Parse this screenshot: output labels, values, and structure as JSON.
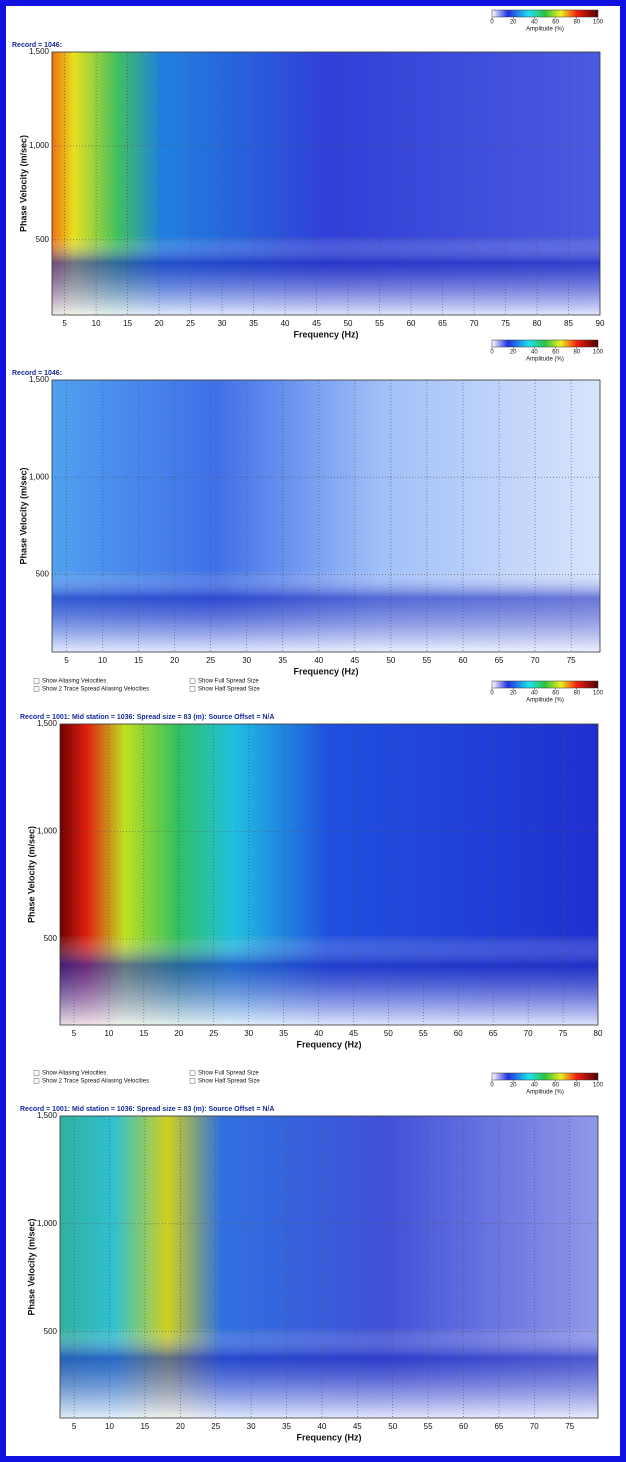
{
  "chart_data": [
    {
      "type": "heatmap",
      "title": "Record = 1046:",
      "xlabel": "Frequency (Hz)",
      "ylabel": "Phase Velocity (m/sec)",
      "xlim": [
        3,
        90
      ],
      "xticks": [
        5,
        10,
        15,
        20,
        25,
        30,
        35,
        40,
        45,
        50,
        55,
        60,
        65,
        70,
        75,
        80,
        85,
        90
      ],
      "ylim": [
        100,
        1500
      ],
      "yticks": [
        {
          "value": 500,
          "label": "500"
        },
        {
          "value": 1000,
          "label": "1,000"
        },
        {
          "value": 1500,
          "label": "1,500"
        }
      ],
      "grid": true,
      "colorbar": {
        "label": "Amplitude (%)",
        "ticks": [
          0,
          20,
          40,
          60,
          80,
          100
        ]
      }
    },
    {
      "type": "heatmap",
      "title": "Record = 1046:",
      "xlabel": "Frequency (Hz)",
      "ylabel": "Phase Velocity (m/sec)",
      "xlim": [
        3,
        79
      ],
      "xticks": [
        5,
        10,
        15,
        20,
        25,
        30,
        35,
        40,
        45,
        50,
        55,
        60,
        65,
        70,
        75
      ],
      "ylim": [
        100,
        1500
      ],
      "yticks": [
        {
          "value": 500,
          "label": "500"
        },
        {
          "value": 1000,
          "label": "1,000"
        },
        {
          "value": 1500,
          "label": "1,500"
        }
      ],
      "grid": true,
      "colorbar": {
        "label": "Amplitude (%)",
        "ticks": [
          0,
          20,
          40,
          60,
          80,
          100
        ]
      }
    },
    {
      "type": "heatmap",
      "title": "Record = 1001: Mid station = 1036: Spread size = 83 (m): Source Offset = N/A",
      "xlabel": "Frequency (Hz)",
      "ylabel": "Phase Velocity (m/sec)",
      "options": [
        "Show Aliasing Velocities",
        "Show 2 Trace Spread Aliasing Velocities",
        "Show Full Spread Size",
        "Show Half Spread Size"
      ],
      "xlim": [
        3,
        80
      ],
      "xticks": [
        5,
        10,
        15,
        20,
        25,
        30,
        35,
        40,
        45,
        50,
        55,
        60,
        65,
        70,
        75,
        80
      ],
      "ylim": [
        100,
        1500
      ],
      "yticks": [
        {
          "value": 500,
          "label": "500"
        },
        {
          "value": 1000,
          "label": "1,000"
        },
        {
          "value": 1500,
          "label": "1,500"
        }
      ],
      "grid": true,
      "colorbar": {
        "label": "Amplitude (%)",
        "ticks": [
          0,
          20,
          40,
          60,
          80,
          100
        ]
      }
    },
    {
      "type": "heatmap",
      "title": "Record = 1001: Mid station = 1036: Spread size = 83 (m): Source Offset = N/A",
      "xlabel": "Frequency (Hz)",
      "ylabel": "Phase Velocity (m/sec)",
      "options": [
        "Show Aliasing Velocities",
        "Show 2 Trace Spread Aliasing Velocities",
        "Show Full Spread Size",
        "Show Half Spread Size"
      ],
      "xlim": [
        3,
        79
      ],
      "xticks": [
        5,
        10,
        15,
        20,
        25,
        30,
        35,
        40,
        45,
        50,
        55,
        60,
        65,
        70,
        75
      ],
      "ylim": [
        100,
        1500
      ],
      "yticks": [
        {
          "value": 500,
          "label": "500"
        },
        {
          "value": 1000,
          "label": "1,000"
        },
        {
          "value": 1500,
          "label": "1,500"
        }
      ],
      "grid": true,
      "colorbar": {
        "label": "Amplitude (%)",
        "ticks": [
          0,
          20,
          40,
          60,
          80,
          100
        ]
      }
    }
  ]
}
